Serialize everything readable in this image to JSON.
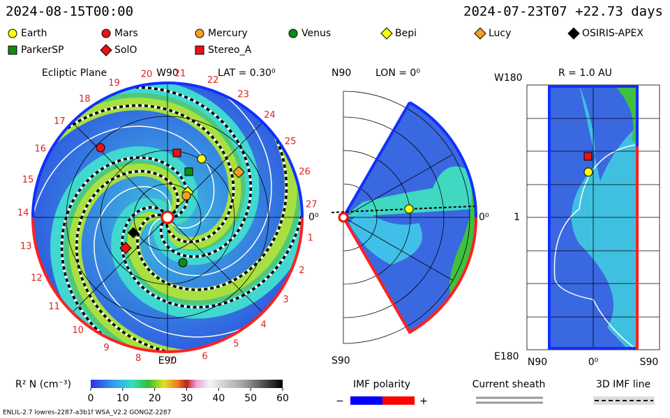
{
  "header": {
    "sim_time": "2024-08-15T00:00",
    "ref_time": "2024-07-23T07 +22.73 days"
  },
  "legend": [
    {
      "label": "Earth",
      "color": "#ffff00",
      "shape": "circle"
    },
    {
      "label": "Mars",
      "color": "#ee1111",
      "shape": "circle"
    },
    {
      "label": "Mercury",
      "color": "#f5a020",
      "shape": "circle"
    },
    {
      "label": "Venus",
      "color": "#138a13",
      "shape": "circle"
    },
    {
      "label": "Bepi",
      "color": "#ffff00",
      "shape": "diamond"
    },
    {
      "label": "Lucy",
      "color": "#f5a020",
      "shape": "diamond"
    },
    {
      "label": "OSIRIS-APEX",
      "color": "#000000",
      "shape": "diamond"
    },
    {
      "label": "ParkerSP",
      "color": "#138a13",
      "shape": "square"
    },
    {
      "label": "SolO",
      "color": "#ee1111",
      "shape": "diamond"
    },
    {
      "label": "Stereo_A",
      "color": "#ee1111",
      "shape": "square"
    }
  ],
  "ecliptic": {
    "title": "Ecliptic Plane",
    "top_label": "W90",
    "lat": "LAT = 0.30⁰",
    "bottom_label": "E90",
    "right_label": "0⁰",
    "carrington": [
      1,
      2,
      3,
      4,
      5,
      6,
      7,
      8,
      9,
      10,
      11,
      12,
      13,
      14,
      15,
      16,
      17,
      18,
      19,
      20,
      21,
      22,
      23,
      24,
      25,
      26,
      27
    ]
  },
  "meridional": {
    "top_label": "N90",
    "lon": "LON = 0⁰",
    "right_label": "0⁰",
    "bottom_label": "S90"
  },
  "radial": {
    "title": "R = 1.0 AU",
    "top_label": "W180",
    "mid_label": "1",
    "bottom_label": "E180",
    "x_labels": [
      "N90",
      "0⁰",
      "S90"
    ]
  },
  "colorbar": {
    "label": "R² N (cm⁻³)",
    "lim": [
      0,
      60
    ],
    "ticks": [
      0,
      10,
      20,
      30,
      40,
      50,
      60
    ]
  },
  "imf": {
    "title": "IMF polarity",
    "minus": "−",
    "plus": "+",
    "neg_color": "#0000ff",
    "pos_color": "#ff0000"
  },
  "current_sheath": "Current sheath",
  "imf_line": "3D IMF line",
  "footer": "ENLIL-2.7 lowres-2287-a3b1f WSA_V2.2 GONGZ-2287"
}
